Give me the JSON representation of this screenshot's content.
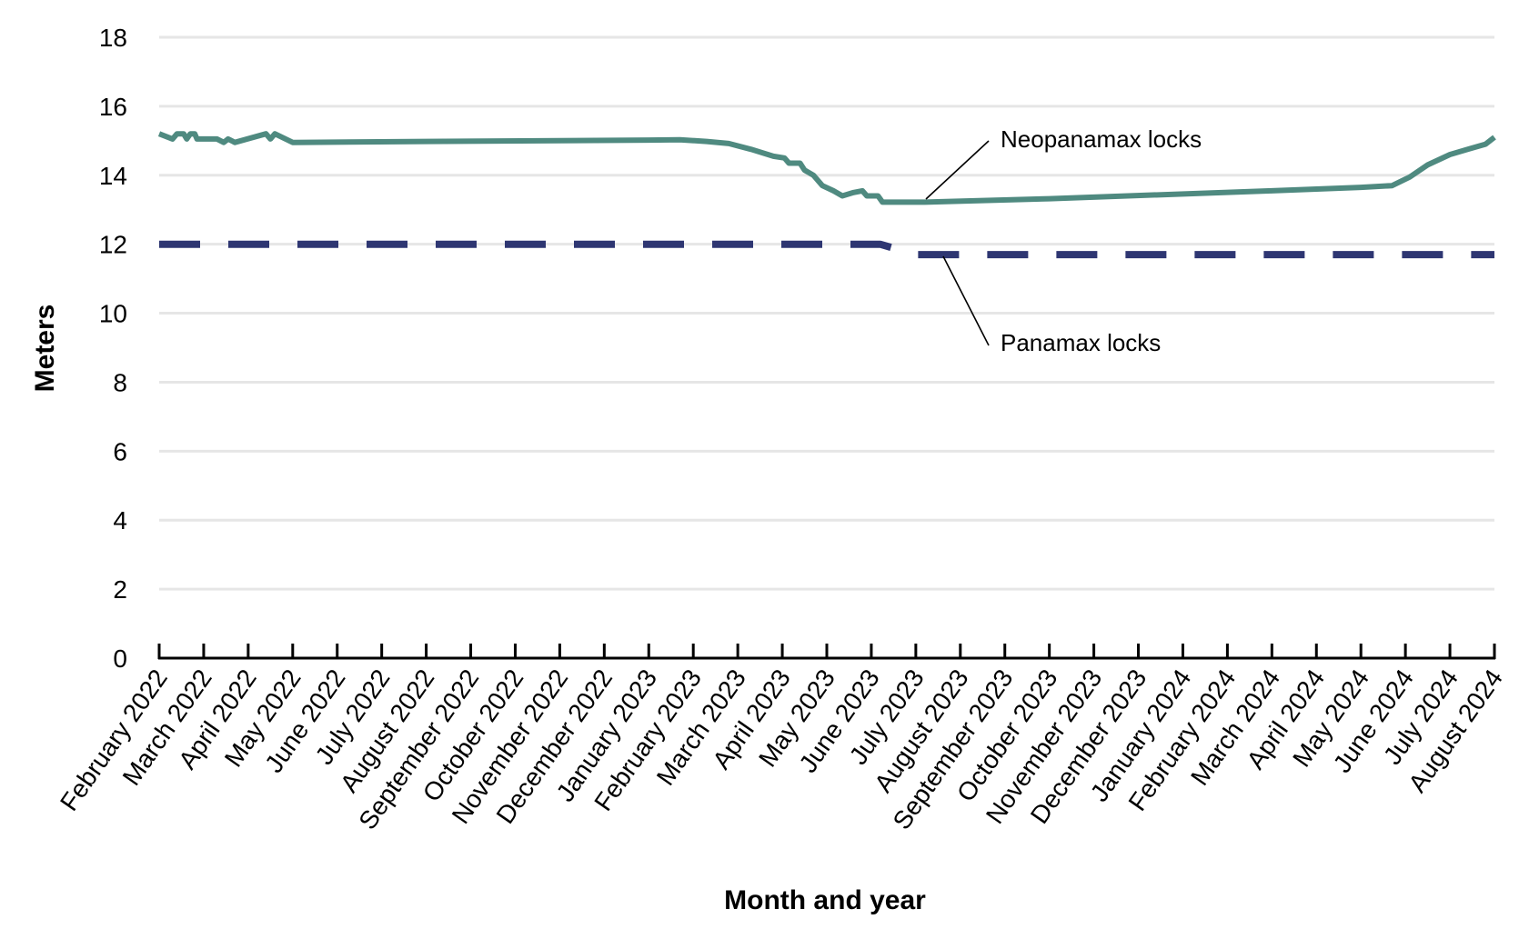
{
  "chart_data": {
    "type": "line",
    "xlabel": "Month and year",
    "ylabel": "Meters",
    "ylim": [
      0,
      18
    ],
    "yticks": [
      0,
      2,
      4,
      6,
      8,
      10,
      12,
      14,
      16,
      18
    ],
    "grid": "horizontal",
    "categories": [
      "February 2022",
      "March 2022",
      "April 2022",
      "May 2022",
      "June 2022",
      "July 2022",
      "August 2022",
      "September 2022",
      "October 2022",
      "November 2022",
      "December 2022",
      "January 2023",
      "February 2023",
      "March 2023",
      "April 2023",
      "May 2023",
      "June 2023",
      "July 2023",
      "August 2023",
      "September 2023",
      "October 2023",
      "November 2023",
      "December 2023",
      "January 2024",
      "February 2024",
      "March 2024",
      "April 2024",
      "May 2024",
      "June 2024",
      "July 2024",
      "August 2024"
    ],
    "annotations": [
      {
        "text": "Neopanamax locks",
        "series": "neopanamax"
      },
      {
        "text": "Panamax locks",
        "series": "panamax"
      }
    ],
    "series": [
      {
        "id": "neopanamax",
        "color": "#4f8a80",
        "style": "solid",
        "points": [
          [
            0.0,
            15.2
          ],
          [
            0.3,
            15.05
          ],
          [
            0.4,
            15.2
          ],
          [
            0.55,
            15.2
          ],
          [
            0.62,
            15.05
          ],
          [
            0.7,
            15.2
          ],
          [
            0.8,
            15.2
          ],
          [
            0.85,
            15.05
          ],
          [
            1.3,
            15.05
          ],
          [
            1.45,
            14.95
          ],
          [
            1.55,
            15.05
          ],
          [
            1.7,
            14.95
          ],
          [
            2.4,
            15.2
          ],
          [
            2.5,
            15.05
          ],
          [
            2.6,
            15.2
          ],
          [
            3.0,
            14.95
          ],
          [
            6.0,
            14.98
          ],
          [
            11.0,
            15.02
          ],
          [
            11.7,
            15.03
          ],
          [
            12.3,
            14.98
          ],
          [
            12.8,
            14.92
          ],
          [
            13.3,
            14.75
          ],
          [
            13.8,
            14.55
          ],
          [
            14.05,
            14.5
          ],
          [
            14.15,
            14.35
          ],
          [
            14.4,
            14.35
          ],
          [
            14.5,
            14.15
          ],
          [
            14.7,
            14.0
          ],
          [
            14.9,
            13.7
          ],
          [
            15.15,
            13.55
          ],
          [
            15.35,
            13.4
          ],
          [
            15.6,
            13.5
          ],
          [
            15.8,
            13.55
          ],
          [
            15.9,
            13.4
          ],
          [
            16.15,
            13.4
          ],
          [
            16.25,
            13.22
          ],
          [
            17.2,
            13.22
          ],
          [
            20.0,
            13.32
          ],
          [
            25.0,
            13.55
          ],
          [
            27.0,
            13.65
          ],
          [
            27.7,
            13.7
          ],
          [
            28.1,
            13.95
          ],
          [
            28.5,
            14.3
          ],
          [
            29.0,
            14.6
          ],
          [
            29.4,
            14.75
          ],
          [
            29.8,
            14.9
          ],
          [
            30.0,
            15.1
          ]
        ]
      },
      {
        "id": "panamax",
        "color": "#2e3672",
        "style": "dashed",
        "points": [
          [
            0.0,
            12.0
          ],
          [
            16.2,
            12.0
          ],
          [
            16.6,
            11.85
          ],
          [
            17.0,
            11.7
          ],
          [
            30.0,
            11.7
          ]
        ]
      }
    ]
  }
}
